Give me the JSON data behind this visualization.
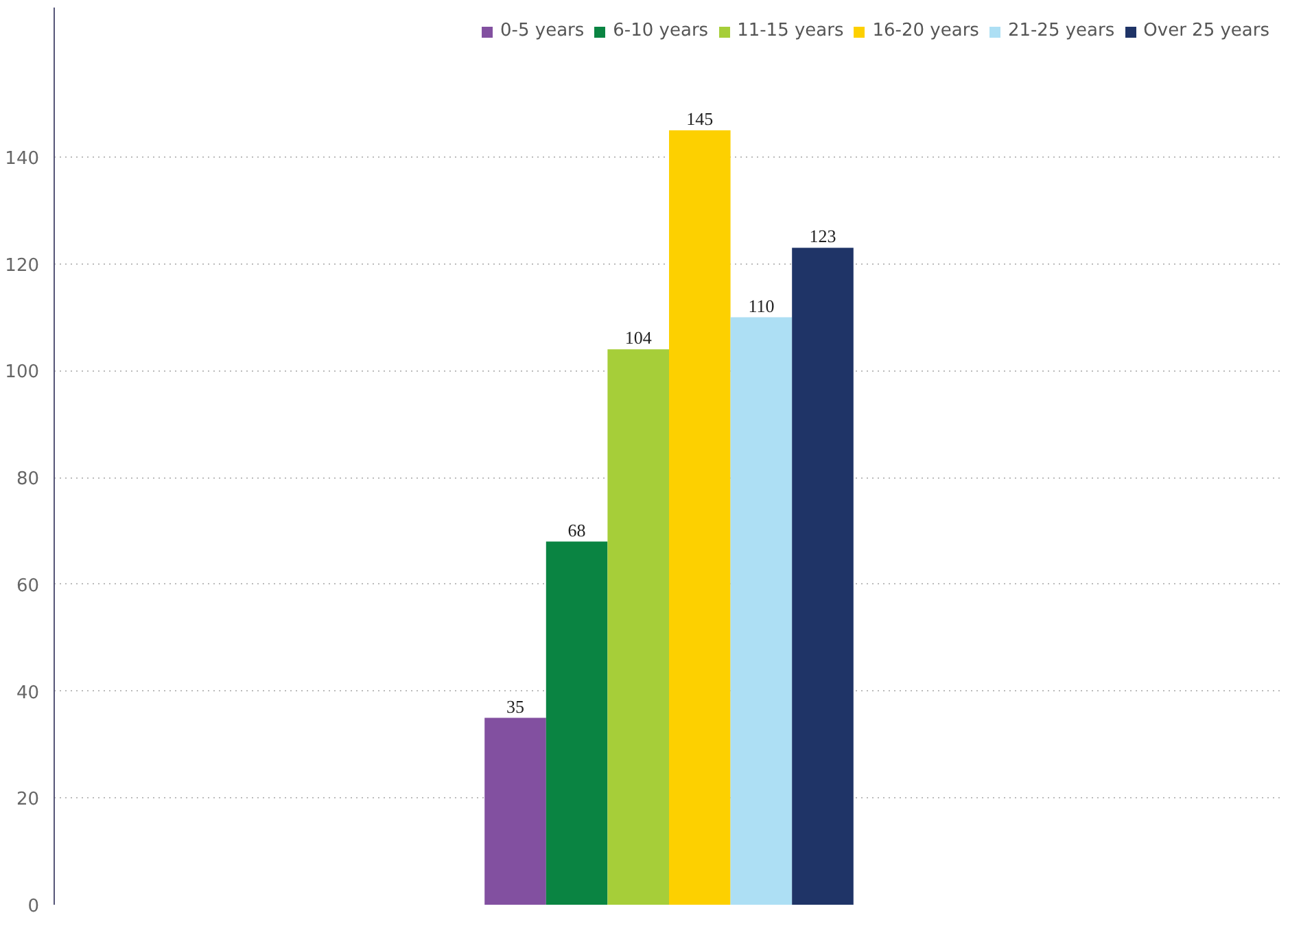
{
  "chart_data": {
    "type": "bar",
    "categories": [
      null
    ],
    "series": [
      {
        "name": "0-5 years",
        "color": "#8250a0",
        "values": [
          35
        ]
      },
      {
        "name": "6-10 years",
        "color": "#0a8442",
        "values": [
          68
        ]
      },
      {
        "name": "11-15 years",
        "color": "#a6ce39",
        "values": [
          104
        ]
      },
      {
        "name": "16-20 years",
        "color": "#fdd000",
        "values": [
          145
        ]
      },
      {
        "name": "21-25 years",
        "color": "#addff4",
        "values": [
          110
        ]
      },
      {
        "name": "Over 25 years",
        "color": "#1f3467",
        "values": [
          123
        ]
      }
    ],
    "ylim": [
      0,
      168
    ],
    "yticks": [
      0,
      20,
      40,
      60,
      80,
      100,
      120,
      140
    ],
    "grid": "y",
    "legend": "top right",
    "data_labels": true
  }
}
